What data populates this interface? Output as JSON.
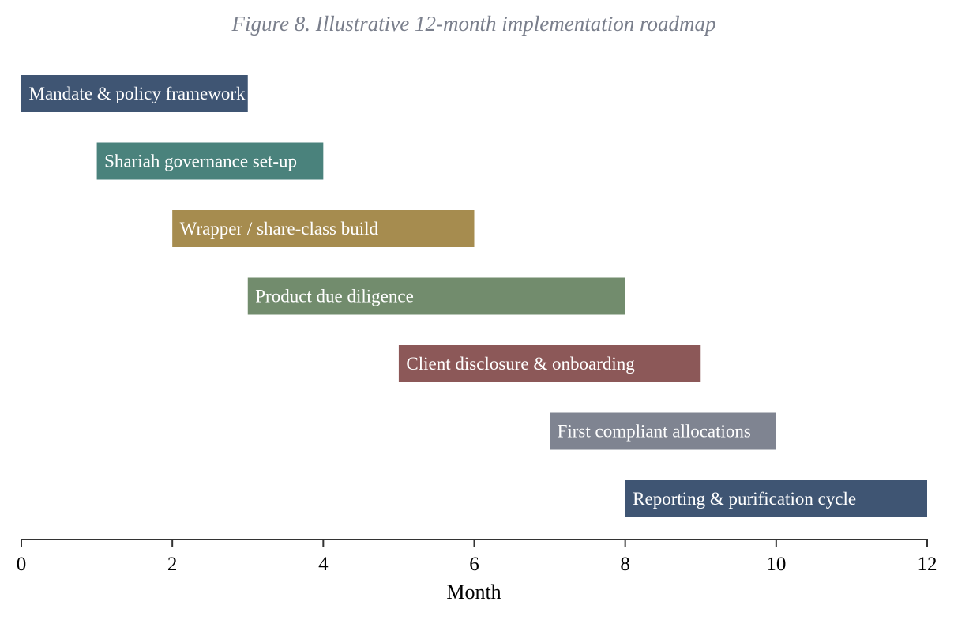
{
  "chart_data": {
    "type": "bar",
    "orientation": "horizontal",
    "subtype": "gantt",
    "title": "Figure 8. Illustrative 12-month implementation roadmap",
    "xlabel": "Month",
    "ylabel": "",
    "xlim": [
      0,
      12
    ],
    "xticks": [
      0,
      2,
      4,
      6,
      8,
      10,
      12
    ],
    "grid": false,
    "legend": "none",
    "tasks": [
      {
        "label": "Mandate & policy framework",
        "start": 0,
        "end": 3,
        "color": "#3f5573"
      },
      {
        "label": "Shariah governance set-up",
        "start": 1,
        "end": 4,
        "color": "#4a827c"
      },
      {
        "label": "Wrapper / share-class build",
        "start": 2,
        "end": 6,
        "color": "#a68c4f"
      },
      {
        "label": "Product due diligence",
        "start": 3,
        "end": 8,
        "color": "#728c6d"
      },
      {
        "label": "Client disclosure & onboarding",
        "start": 5,
        "end": 9,
        "color": "#8c5858"
      },
      {
        "label": "First compliant allocations",
        "start": 7,
        "end": 10,
        "color": "#7f8491"
      },
      {
        "label": "Reporting & purification cycle",
        "start": 8,
        "end": 12,
        "color": "#3f5573"
      }
    ]
  }
}
